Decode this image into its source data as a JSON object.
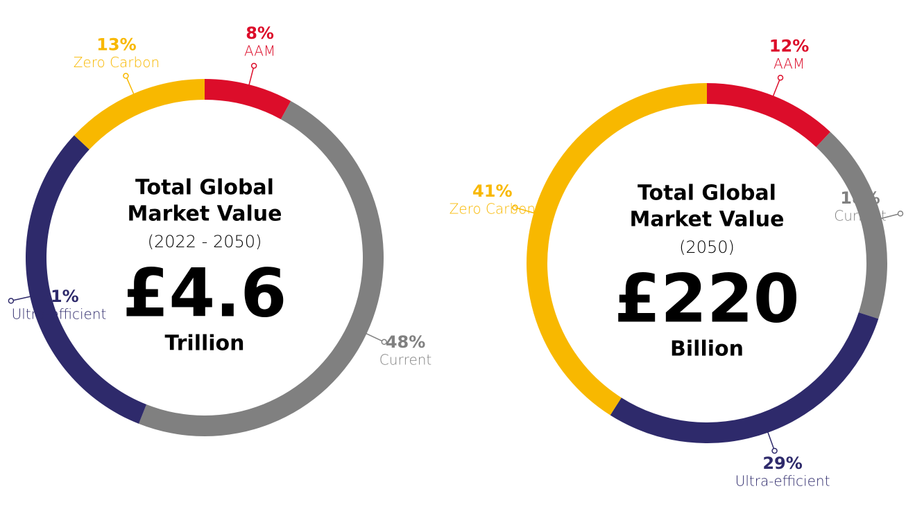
{
  "chart_data": [
    {
      "type": "donut",
      "center_title": [
        "Total Global",
        "Market Value"
      ],
      "center_subtitle": "(2022 - 2050)",
      "center_value": "£4.6",
      "center_unit": "Trillion",
      "categories": [
        "AAM",
        "Current",
        "Ultra-efficient",
        "Zero Carbon"
      ],
      "values": [
        8,
        48,
        31,
        13
      ],
      "value_labels": [
        "8%",
        "48%",
        "31%",
        "13%"
      ],
      "colors": [
        "#dc0d2a",
        "#808080",
        "#2e2a6b",
        "#f8b800"
      ]
    },
    {
      "type": "donut",
      "center_title": [
        "Total Global",
        "Market Value"
      ],
      "center_subtitle": "(2050)",
      "center_value": "£220",
      "center_unit": "Billion",
      "categories": [
        "AAM",
        "Current",
        "Ultra-efficient",
        "Zero Carbon"
      ],
      "values": [
        12,
        18,
        29,
        41
      ],
      "value_labels": [
        "12%",
        "18%",
        "29%",
        "41%"
      ],
      "colors": [
        "#dc0d2a",
        "#808080",
        "#2e2a6b",
        "#f8b800"
      ]
    }
  ]
}
